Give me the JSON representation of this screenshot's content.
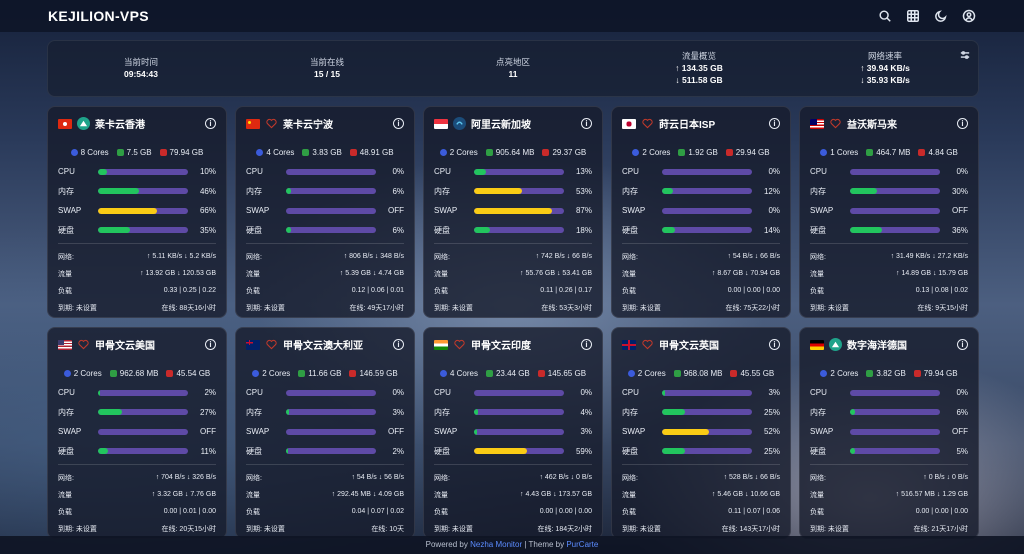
{
  "brand": "KEJILION-VPS",
  "top_icons": [
    "search-icon",
    "grid-icon",
    "moon-icon",
    "user-icon"
  ],
  "overview": {
    "items": [
      {
        "label": "当前时间",
        "value": "09:54:43"
      },
      {
        "label": "当前在线",
        "value": "15 / 15"
      },
      {
        "label": "点亮地区",
        "value": "11"
      },
      {
        "label": "流量概览",
        "value": "↑ 134.35 GB",
        "value2": "↓ 511.58 GB"
      },
      {
        "label": "网络速率",
        "value": "↑ 39.94 KB/s",
        "value2": "↓ 35.93 KB/s"
      }
    ]
  },
  "labels": {
    "cpu": "CPU",
    "mem": "内存",
    "swap": "SWAP",
    "disk": "硬盘",
    "net": "网络:",
    "traffic": "流量",
    "load": "负载",
    "expire": "到期: 未设置"
  },
  "colors": {
    "bar_bg": "#5e4aa6",
    "ok": "#22c55e",
    "warn": "#facc15",
    "cores": "#3b5bdb",
    "ram": "#2f9e44",
    "disk": "#c92a2a"
  },
  "servers": [
    {
      "name": "莱卡云香港",
      "flag": "hk",
      "os": "green",
      "cores": "8 Cores",
      "ram": "7.5 GB",
      "disk_size": "79.94 GB",
      "cpu": 10,
      "cpu_t": "10%",
      "mem": 46,
      "mem_t": "46%",
      "swap": 66,
      "swap_t": "66%",
      "disk": 35,
      "disk_t": "35%",
      "net": "↑ 5.11 KB/s ↓ 5.2 KB/s",
      "traffic": "↑ 13.92 GB ↓ 120.53 GB",
      "load": "0.33 | 0.25 | 0.22",
      "online": "在线: 88天16小时"
    },
    {
      "name": "莱卡云宁波",
      "flag": "cn",
      "os": "heart",
      "cores": "4 Cores",
      "ram": "3.83 GB",
      "disk_size": "48.91 GB",
      "cpu": 0,
      "cpu_t": "0%",
      "mem": 6,
      "mem_t": "6%",
      "swap": 0,
      "swap_t": "OFF",
      "disk": 6,
      "disk_t": "6%",
      "net": "↑ 806 B/s ↓ 348 B/s",
      "traffic": "↑ 5.39 GB ↓ 4.74 GB",
      "load": "0.12 | 0.06 | 0.01",
      "online": "在线: 49天17小时"
    },
    {
      "name": "阿里云新加坡",
      "flag": "sg",
      "os": "blue",
      "cores": "2 Cores",
      "ram": "905.64 MB",
      "disk_size": "29.37 GB",
      "cpu": 13,
      "cpu_t": "13%",
      "mem": 53,
      "mem_t": "53%",
      "swap": 87,
      "swap_t": "87%",
      "disk": 18,
      "disk_t": "18%",
      "net": "↑ 742 B/s ↓ 66 B/s",
      "traffic": "↑ 55.76 GB ↓ 53.41 GB",
      "load": "0.11 | 0.26 | 0.17",
      "online": "在线: 53天3小时"
    },
    {
      "name": "莳云日本ISP",
      "flag": "jp",
      "os": "heart",
      "cores": "2 Cores",
      "ram": "1.92 GB",
      "disk_size": "29.94 GB",
      "cpu": 0,
      "cpu_t": "0%",
      "mem": 12,
      "mem_t": "12%",
      "swap": 0,
      "swap_t": "0%",
      "disk": 14,
      "disk_t": "14%",
      "net": "↑ 54 B/s ↓ 66 B/s",
      "traffic": "↑ 8.67 GB ↓ 70.94 GB",
      "load": "0.00 | 0.00 | 0.00",
      "online": "在线: 75天22小时"
    },
    {
      "name": "益沃斯马来",
      "flag": "my",
      "os": "heart",
      "cores": "1 Cores",
      "ram": "464.7 MB",
      "disk_size": "4.84 GB",
      "cpu": 0,
      "cpu_t": "0%",
      "mem": 30,
      "mem_t": "30%",
      "swap": 0,
      "swap_t": "OFF",
      "disk": 36,
      "disk_t": "36%",
      "net": "↑ 31.49 KB/s ↓ 27.2 KB/s",
      "traffic": "↑ 14.89 GB ↓ 15.79 GB",
      "load": "0.13 | 0.08 | 0.02",
      "online": "在线: 9天15小时"
    },
    {
      "name": "甲骨文云美国",
      "flag": "us",
      "os": "heart",
      "cores": "2 Cores",
      "ram": "962.68 MB",
      "disk_size": "45.54 GB",
      "cpu": 2,
      "cpu_t": "2%",
      "mem": 27,
      "mem_t": "27%",
      "swap": 0,
      "swap_t": "OFF",
      "disk": 11,
      "disk_t": "11%",
      "net": "↑ 704 B/s ↓ 326 B/s",
      "traffic": "↑ 3.32 GB ↓ 7.76 GB",
      "load": "0.00 | 0.01 | 0.00",
      "online": "在线: 20天15小时"
    },
    {
      "name": "甲骨文云澳大利亚",
      "flag": "au",
      "os": "heart",
      "cores": "2 Cores",
      "ram": "11.66 GB",
      "disk_size": "146.59 GB",
      "cpu": 0,
      "cpu_t": "0%",
      "mem": 3,
      "mem_t": "3%",
      "swap": 0,
      "swap_t": "OFF",
      "disk": 2,
      "disk_t": "2%",
      "net": "↑ 54 B/s ↓ 56 B/s",
      "traffic": "↑ 292.45 MB ↓ 4.09 GB",
      "load": "0.04 | 0.07 | 0.02",
      "online": "在线: 10天"
    },
    {
      "name": "甲骨文云印度",
      "flag": "in",
      "os": "heart",
      "cores": "4 Cores",
      "ram": "23.44 GB",
      "disk_size": "145.65 GB",
      "cpu": 0,
      "cpu_t": "0%",
      "mem": 4,
      "mem_t": "4%",
      "swap": 3,
      "swap_t": "3%",
      "disk": 59,
      "disk_t": "59%",
      "net": "↑ 462 B/s ↓ 0 B/s",
      "traffic": "↑ 4.43 GB ↓ 173.57 GB",
      "load": "0.00 | 0.00 | 0.00",
      "online": "在线: 184天2小时"
    },
    {
      "name": "甲骨文云英国",
      "flag": "gb",
      "os": "heart",
      "cores": "2 Cores",
      "ram": "968.08 MB",
      "disk_size": "45.55 GB",
      "cpu": 3,
      "cpu_t": "3%",
      "mem": 25,
      "mem_t": "25%",
      "swap": 52,
      "swap_t": "52%",
      "disk": 25,
      "disk_t": "25%",
      "net": "↑ 528 B/s ↓ 66 B/s",
      "traffic": "↑ 5.46 GB ↓ 10.66 GB",
      "load": "0.11 | 0.07 | 0.06",
      "online": "在线: 143天17小时"
    },
    {
      "name": "数字海洋德国",
      "flag": "de",
      "os": "green",
      "cores": "2 Cores",
      "ram": "3.82 GB",
      "disk_size": "79.94 GB",
      "cpu": 0,
      "cpu_t": "0%",
      "mem": 6,
      "mem_t": "6%",
      "swap": 0,
      "swap_t": "OFF",
      "disk": 5,
      "disk_t": "5%",
      "net": "↑ 0 B/s ↓ 0 B/s",
      "traffic": "↑ 516.57 MB ↓ 1.29 GB",
      "load": "0.00 | 0.00 | 0.00",
      "online": "在线: 21天17小时"
    }
  ],
  "footer": {
    "powered": "Powered by",
    "link1": "Nezha Monitor",
    "sep": "| Theme by",
    "link2": "PurCarte"
  }
}
